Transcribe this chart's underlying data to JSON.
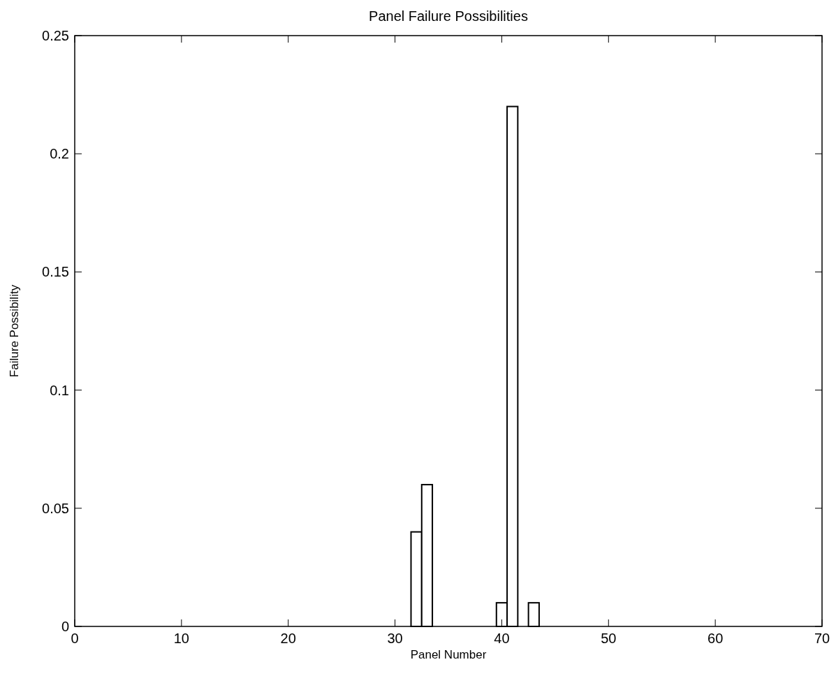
{
  "chart_data": {
    "type": "histogram",
    "title": "Panel Failure Possibilities",
    "xlabel": "Panel Number",
    "ylabel": "Failure Possibility",
    "bins": [
      31.5,
      32.5,
      33.5,
      34.5,
      35.5,
      36.5,
      37.5,
      38.5,
      39.5,
      40.5,
      41.5,
      42.5,
      43.5
    ],
    "values": [
      0.04,
      0.06,
      0,
      0,
      0,
      0,
      0,
      0,
      0.01,
      0.22,
      0,
      0.01
    ],
    "color": "#000000",
    "xlim": [
      0,
      70
    ],
    "xticks": [
      0,
      10,
      20,
      30,
      40,
      50,
      60,
      70
    ],
    "ylim": [
      0,
      0.25
    ],
    "yticks": [
      0,
      0.05,
      0.1,
      0.15,
      0.2,
      0.25
    ],
    "grid": false
  }
}
